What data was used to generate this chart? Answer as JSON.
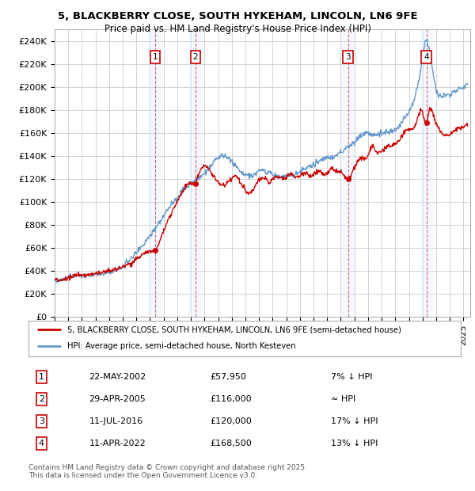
{
  "title_line1": "5, BLACKBERRY CLOSE, SOUTH HYKEHAM, LINCOLN, LN6 9FE",
  "title_line2": "Price paid vs. HM Land Registry's House Price Index (HPI)",
  "ylabel_ticks": [
    "£0",
    "£20K",
    "£40K",
    "£60K",
    "£80K",
    "£100K",
    "£120K",
    "£140K",
    "£160K",
    "£180K",
    "£200K",
    "£220K",
    "£240K"
  ],
  "ytick_values": [
    0,
    20000,
    40000,
    60000,
    80000,
    100000,
    120000,
    140000,
    160000,
    180000,
    200000,
    220000,
    240000
  ],
  "ylim": [
    0,
    250000
  ],
  "xlim_start": 1995.0,
  "xlim_end": 2025.5,
  "sale_dates": [
    2002.388,
    2005.327,
    2016.527,
    2022.278
  ],
  "sale_prices": [
    57950,
    116000,
    120000,
    168500
  ],
  "sale_labels": [
    "1",
    "2",
    "3",
    "4"
  ],
  "legend_entries": [
    "5, BLACKBERRY CLOSE, SOUTH HYKEHAM, LINCOLN, LN6 9FE (semi-detached house)",
    "HPI: Average price, semi-detached house, North Kesteven"
  ],
  "table_rows": [
    [
      "1",
      "22-MAY-2002",
      "£57,950",
      "7% ↓ HPI"
    ],
    [
      "2",
      "29-APR-2005",
      "£116,000",
      "≈ HPI"
    ],
    [
      "3",
      "11-JUL-2016",
      "£120,000",
      "17% ↓ HPI"
    ],
    [
      "4",
      "11-APR-2022",
      "£168,500",
      "13% ↓ HPI"
    ]
  ],
  "footnote": "Contains HM Land Registry data © Crown copyright and database right 2025.\nThis data is licensed under the Open Government Licence v3.0.",
  "hpi_color": "#6699cc",
  "price_color": "#cc0000",
  "background_color": "#ffffff",
  "grid_color": "#cccccc",
  "annotation_box_color": "#cc0000",
  "shaded_color": "#ddeeff",
  "vline_color": "#cc0000"
}
